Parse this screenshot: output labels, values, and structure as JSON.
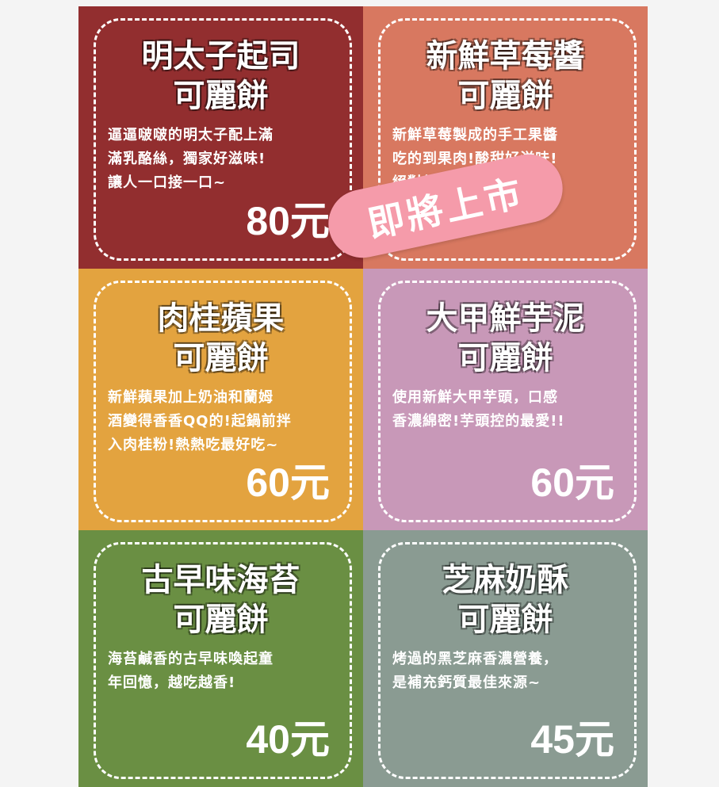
{
  "products": [
    {
      "name_line1": "明太子起司",
      "name_line2": "可麗餅",
      "desc_lines": [
        "逼逼啵啵的明太子配上滿",
        "滿乳酪絲，獨家好滋味!",
        "讓人一口接一口~"
      ],
      "price": "80元",
      "color": "#922e2f"
    },
    {
      "name_line1": "新鮮草莓醬",
      "name_line2": "可麗餅",
      "desc_lines": [
        "新鮮草莓製成的手工果醬",
        "吃的到果肉!酸甜好滋味!",
        "絕對無添加"
      ],
      "price": "",
      "color": "#d87860"
    },
    {
      "name_line1": "肉桂蘋果",
      "name_line2": "可麗餅",
      "desc_lines": [
        "新鮮蘋果加上奶油和蘭姆",
        "酒變得香香QQ的!起鍋前拌",
        "入肉桂粉!熱熱吃最好吃~"
      ],
      "price": "60元",
      "color": "#e3a33f"
    },
    {
      "name_line1": "大甲鮮芋泥",
      "name_line2": "可麗餅",
      "desc_lines": [
        "使用新鮮大甲芋頭，口感",
        "香濃綿密!芋頭控的最愛!!"
      ],
      "price": "60元",
      "color": "#c898b8"
    },
    {
      "name_line1": "古早味海苔",
      "name_line2": "可麗餅",
      "desc_lines": [
        "海苔鹹香的古早味喚起童",
        "年回憶，越吃越香!"
      ],
      "price": "40元",
      "color": "#6a8f43"
    },
    {
      "name_line1": "芝麻奶酥",
      "name_line2": "可麗餅",
      "desc_lines": [
        "烤過的黑芝麻香濃營養，",
        "是補充鈣質最佳來源~"
      ],
      "price": "45元",
      "color": "#8a9b92"
    }
  ],
  "badge": {
    "label": "即將上市",
    "color": "#f59baa"
  }
}
